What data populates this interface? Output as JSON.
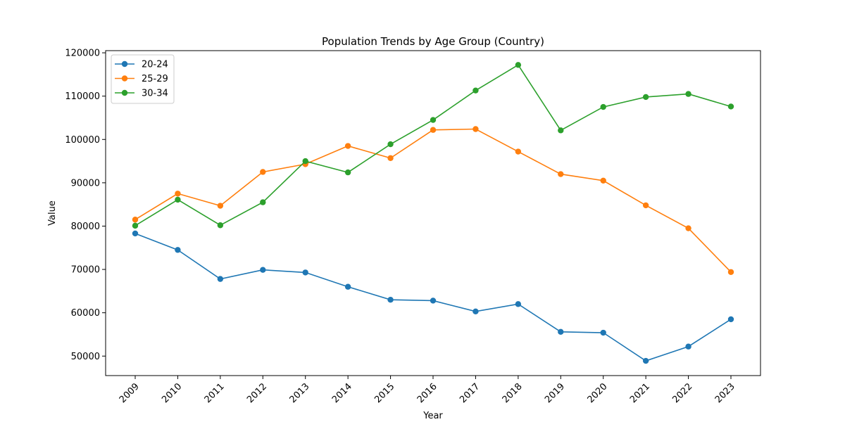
{
  "chart_data": {
    "type": "line",
    "title": "Population Trends by Age Group (Country)",
    "xlabel": "Year",
    "ylabel": "Value",
    "x": [
      "2009",
      "2010",
      "2011",
      "2012",
      "2013",
      "2014",
      "2015",
      "2016",
      "2017",
      "2018",
      "2019",
      "2020",
      "2021",
      "2022",
      "2023"
    ],
    "ylim": [
      45500,
      120500
    ],
    "yticks": [
      50000,
      60000,
      70000,
      80000,
      90000,
      100000,
      110000,
      120000
    ],
    "legend_position": "top-left",
    "grid": false,
    "series": [
      {
        "name": "20-24",
        "color": "#1f77b4",
        "values": [
          78300,
          74500,
          67800,
          69900,
          69300,
          66000,
          63000,
          62800,
          60300,
          62000,
          55600,
          55400,
          48900,
          52200,
          58500
        ]
      },
      {
        "name": "25-29",
        "color": "#ff7f0e",
        "values": [
          81500,
          87500,
          84700,
          92500,
          94300,
          98500,
          95700,
          102200,
          102400,
          97200,
          92000,
          90500,
          84800,
          79500,
          69400
        ]
      },
      {
        "name": "30-34",
        "color": "#2ca02c",
        "values": [
          80100,
          86100,
          80200,
          85500,
          95000,
          92400,
          98900,
          104500,
          111300,
          117200,
          102100,
          107500,
          109800,
          110500,
          107600
        ]
      }
    ]
  }
}
